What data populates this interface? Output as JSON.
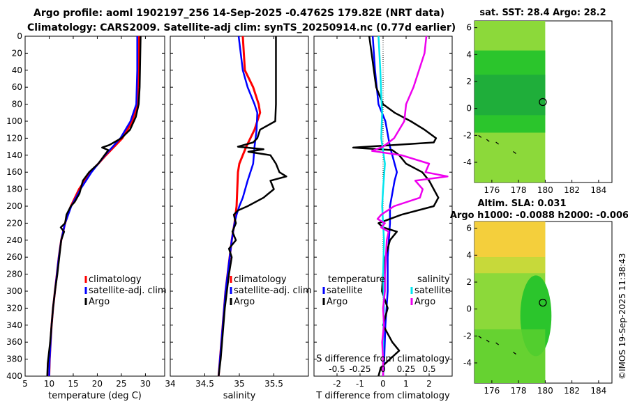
{
  "header": {
    "title_line1": "Argo profile: aoml 1902197_256 14-Sep-2025 -0.4762S 179.82E (NRT data)",
    "title_line2": "Climatology: CARS2009. Satellite-adj clim: synTS_20250914.nc (0.77d earlier)"
  },
  "maps": {
    "sst_title": "sat. SST: 28.4 Argo: 28.2",
    "sla_title": "Altim. SLA: 0.031",
    "h_title": "Argo h1000: -0.0088 h2000: -0.006",
    "xticks": [
      "176",
      "178",
      "180",
      "182",
      "184"
    ],
    "yticks": [
      "6",
      "4",
      "2",
      "0",
      "-2",
      "-4"
    ],
    "colors": {
      "warm": "#f4cf3c",
      "mid": "#8cd93a",
      "cool": "#2bc52c",
      "deep": "#1fae3a"
    }
  },
  "stamp": "©IMOS 19-Sep-2025 11:38:43",
  "chart_data": [
    {
      "type": "line",
      "panel": "temperature",
      "xlabel": "temperature (deg C)",
      "ylabel": "",
      "xlim": [
        5,
        34
      ],
      "ylim": [
        400,
        0
      ],
      "xticks": [
        5,
        10,
        15,
        20,
        25,
        30
      ],
      "yticks": [
        0,
        20,
        40,
        60,
        80,
        100,
        120,
        140,
        160,
        180,
        200,
        220,
        240,
        260,
        280,
        300,
        320,
        340,
        360,
        380,
        400
      ],
      "legend": [
        "climatology",
        "satellite-adj. clim",
        "Argo"
      ],
      "series": [
        {
          "name": "climatology",
          "color": "#ff0000",
          "width": 3,
          "depth": [
            0,
            40,
            80,
            100,
            120,
            140,
            160,
            180,
            200,
            220,
            240,
            260,
            280,
            300,
            320,
            340,
            360,
            380,
            400
          ],
          "values": [
            28.7,
            28.6,
            28.3,
            27.3,
            25.2,
            21.8,
            18.6,
            16.2,
            14.5,
            13.3,
            12.5,
            12.0,
            11.6,
            11.2,
            10.8,
            10.5,
            10.3,
            10.1,
            10.0
          ]
        },
        {
          "name": "satellite-adj. clim",
          "color": "#0000ff",
          "width": 2.5,
          "depth": [
            0,
            40,
            80,
            100,
            120,
            140,
            160,
            180,
            200,
            220,
            240,
            260,
            280,
            300,
            320,
            340,
            360,
            380,
            400
          ],
          "values": [
            28.3,
            28.3,
            28.1,
            26.9,
            24.8,
            21.6,
            18.8,
            16.5,
            14.6,
            13.3,
            12.5,
            12.0,
            11.6,
            11.2,
            10.8,
            10.5,
            10.3,
            10.1,
            10.0
          ]
        },
        {
          "name": "Argo",
          "color": "#000000",
          "width": 2.5,
          "depth": [
            0,
            60,
            80,
            95,
            110,
            120,
            128,
            131,
            134,
            140,
            150,
            160,
            170,
            185,
            195,
            200,
            210,
            220,
            225,
            230,
            240,
            260,
            280,
            300,
            320,
            340,
            360,
            375,
            385,
            400
          ],
          "values": [
            29.0,
            28.8,
            28.6,
            28.0,
            26.8,
            25.0,
            22.5,
            21.0,
            22.3,
            21.5,
            20.2,
            18.3,
            17.0,
            16.3,
            15.3,
            14.5,
            13.6,
            13.3,
            12.4,
            13.1,
            12.5,
            12.1,
            11.7,
            11.2,
            10.8,
            10.5,
            10.2,
            9.9,
            9.7,
            9.6
          ]
        }
      ]
    },
    {
      "type": "line",
      "panel": "salinity",
      "xlabel": "salinity",
      "xlim": [
        34,
        36
      ],
      "ylim": [
        400,
        0
      ],
      "xticks": [
        34,
        34.5,
        35,
        35.5
      ],
      "xticklabels": [
        "34",
        "34.5",
        "35",
        "35.5"
      ],
      "legend": [
        "climatology",
        "satellite-adj. clim",
        "Argo"
      ],
      "series": [
        {
          "name": "climatology",
          "color": "#ff0000",
          "width": 3,
          "depth": [
            0,
            40,
            60,
            80,
            90,
            110,
            130,
            150,
            160,
            180,
            200,
            220,
            240,
            260,
            280,
            300,
            320,
            340,
            360,
            380,
            400
          ],
          "values": [
            35.05,
            35.08,
            35.2,
            35.28,
            35.3,
            35.22,
            35.1,
            35.0,
            34.98,
            34.97,
            34.96,
            34.93,
            34.89,
            34.86,
            34.83,
            34.8,
            34.78,
            34.76,
            34.74,
            34.72,
            34.7
          ]
        },
        {
          "name": "satellite-adj. clim",
          "color": "#0000ff",
          "width": 2.5,
          "depth": [
            0,
            40,
            60,
            80,
            90,
            110,
            130,
            150,
            170,
            190,
            200,
            210,
            220,
            240,
            260,
            280,
            300,
            320,
            340,
            360,
            380,
            400
          ],
          "values": [
            34.99,
            35.05,
            35.12,
            35.22,
            35.26,
            35.25,
            35.22,
            35.2,
            35.12,
            35.05,
            35.0,
            34.96,
            34.93,
            34.89,
            34.86,
            34.83,
            34.8,
            34.78,
            34.76,
            34.74,
            34.72,
            34.7
          ]
        },
        {
          "name": "Argo",
          "color": "#000000",
          "width": 2.5,
          "depth": [
            0,
            60,
            80,
            100,
            110,
            120,
            125,
            130,
            133,
            136,
            140,
            150,
            160,
            165,
            170,
            180,
            190,
            200,
            205,
            210,
            220,
            230,
            240,
            250,
            260,
            280,
            300,
            320,
            340,
            360,
            380,
            400
          ],
          "values": [
            35.53,
            35.53,
            35.53,
            35.52,
            35.3,
            35.26,
            35.2,
            34.98,
            35.35,
            35.13,
            35.45,
            35.53,
            35.58,
            35.68,
            35.45,
            35.5,
            35.35,
            35.12,
            34.98,
            34.92,
            34.95,
            34.9,
            34.95,
            34.85,
            34.89,
            34.85,
            34.82,
            34.79,
            34.77,
            34.75,
            34.73,
            34.7
          ]
        }
      ]
    },
    {
      "type": "line",
      "panel": "difference",
      "xlabel": "T difference from climatology",
      "top_label": "S difference from climatology",
      "xlim": [
        -3,
        3
      ],
      "ylim": [
        400,
        0
      ],
      "xticks": [
        -2,
        -1,
        0,
        1,
        2
      ],
      "top_xticklabels": [
        "-0.5",
        "-0.25",
        "0",
        "0.25",
        "0.5"
      ],
      "legend_t": [
        "temperature",
        "satellite",
        "Argo"
      ],
      "legend_s": [
        "salinity",
        "satellite",
        "Argo"
      ],
      "series": [
        {
          "name": "T satellite",
          "color": "#0000ff",
          "width": 2.5,
          "depth": [
            0,
            40,
            80,
            100,
            130,
            160,
            170,
            200,
            220,
            260,
            300,
            340,
            380,
            400
          ],
          "values": [
            -0.45,
            -0.35,
            -0.2,
            0.1,
            0.3,
            0.6,
            0.5,
            0.3,
            0.3,
            0.2,
            0.2,
            0.1,
            0.05,
            0.0
          ]
        },
        {
          "name": "T Argo",
          "color": "#000000",
          "width": 2.5,
          "depth": [
            0,
            60,
            80,
            90,
            100,
            110,
            120,
            125,
            128,
            131,
            134,
            140,
            150,
            160,
            170,
            180,
            190,
            200,
            210,
            220,
            225,
            230,
            240,
            260,
            280,
            300,
            320,
            340,
            360,
            370,
            380,
            390,
            400
          ],
          "values": [
            -0.6,
            -0.3,
            0,
            0.5,
            1.2,
            1.8,
            2.3,
            2.2,
            0.5,
            -1.3,
            0.4,
            0.7,
            1.0,
            1.7,
            2.0,
            2.2,
            2.4,
            2.2,
            0.8,
            -0.2,
            0.0,
            0.6,
            0.3,
            0.1,
            0.0,
            -0.05,
            0.2,
            0.0,
            0.4,
            0.7,
            0.3,
            -0.1,
            -0.2
          ]
        }
      ]
    },
    {
      "type": "line",
      "panel": "difference-salinity",
      "xlim": [
        -0.75,
        0.75
      ],
      "ylim": [
        400,
        0
      ],
      "series": [
        {
          "name": "S satellite",
          "color": "#00e5ee",
          "width": 2.5,
          "depth": [
            0,
            40,
            70,
            90,
            120,
            150,
            180,
            200,
            240,
            280,
            320,
            360,
            400
          ],
          "values": [
            -0.05,
            -0.03,
            -0.02,
            -0.01,
            -0.02,
            0.02,
            0.0,
            -0.01,
            0.01,
            0.0,
            0.01,
            0.0,
            0.0
          ]
        },
        {
          "name": "S Argo",
          "color": "#ee00ee",
          "width": 2.5,
          "depth": [
            0,
            20,
            60,
            80,
            100,
            120,
            130,
            135,
            140,
            150,
            160,
            165,
            170,
            180,
            190,
            200,
            210,
            215,
            220,
            225,
            230,
            240,
            260,
            280,
            300,
            320,
            340,
            360,
            380,
            400
          ],
          "values": [
            0.47,
            0.45,
            0.33,
            0.25,
            0.23,
            0.12,
            0.0,
            -0.12,
            0.2,
            0.5,
            0.46,
            0.7,
            0.35,
            0.43,
            0.4,
            0.12,
            -0.02,
            -0.06,
            0.02,
            -0.02,
            0.06,
            0.04,
            0.03,
            0.02,
            0.02,
            0.0,
            0.01,
            -0.01,
            0.0,
            0.0
          ]
        }
      ]
    }
  ]
}
